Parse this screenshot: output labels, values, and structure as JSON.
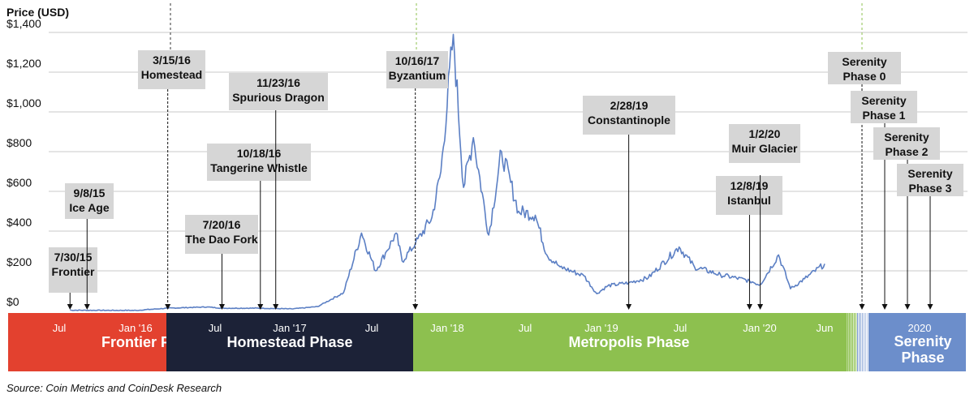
{
  "chart_data": {
    "type": "line",
    "ylabel": "Price (USD)",
    "ylim": [
      0,
      1400
    ],
    "yticks": [
      "$0",
      "$200",
      "$400",
      "$600",
      "$800",
      "$1,000",
      "$1,200",
      "$1,400"
    ],
    "grid": "horizontal",
    "x_tick_labels": [
      "Jul",
      "Jan '16",
      "Jul",
      "Jan '17",
      "Jul",
      "Jan '18",
      "Jul",
      "Jan '19",
      "Jul",
      "Jan '20",
      "Jun",
      "2020"
    ],
    "series": [
      {
        "values": [
          {
            "x": "2015-07-30",
            "y": 2
          },
          {
            "x": "2015-10-01",
            "y": 1
          },
          {
            "x": "2016-01-01",
            "y": 1
          },
          {
            "x": "2016-03-15",
            "y": 12
          },
          {
            "x": "2016-06-15",
            "y": 18
          },
          {
            "x": "2016-07-20",
            "y": 12
          },
          {
            "x": "2016-10-18",
            "y": 12
          },
          {
            "x": "2016-12-31",
            "y": 8
          },
          {
            "x": "2017-03-01",
            "y": 20
          },
          {
            "x": "2017-05-01",
            "y": 90
          },
          {
            "x": "2017-06-12",
            "y": 390
          },
          {
            "x": "2017-07-15",
            "y": 200
          },
          {
            "x": "2017-08-10",
            "y": 300
          },
          {
            "x": "2017-09-01",
            "y": 390
          },
          {
            "x": "2017-09-15",
            "y": 250
          },
          {
            "x": "2017-10-16",
            "y": 335
          },
          {
            "x": "2017-11-24",
            "y": 470
          },
          {
            "x": "2017-12-15",
            "y": 700
          },
          {
            "x": "2018-01-13",
            "y": 1390
          },
          {
            "x": "2018-02-06",
            "y": 620
          },
          {
            "x": "2018-03-01",
            "y": 870
          },
          {
            "x": "2018-04-06",
            "y": 380
          },
          {
            "x": "2018-05-06",
            "y": 800
          },
          {
            "x": "2018-06-15",
            "y": 500
          },
          {
            "x": "2018-07-24",
            "y": 480
          },
          {
            "x": "2018-08-20",
            "y": 280
          },
          {
            "x": "2018-09-20",
            "y": 220
          },
          {
            "x": "2018-11-15",
            "y": 175
          },
          {
            "x": "2018-12-15",
            "y": 85
          },
          {
            "x": "2019-01-10",
            "y": 125
          },
          {
            "x": "2019-02-28",
            "y": 140
          },
          {
            "x": "2019-04-15",
            "y": 165
          },
          {
            "x": "2019-06-26",
            "y": 320
          },
          {
            "x": "2019-08-01",
            "y": 220
          },
          {
            "x": "2019-10-01",
            "y": 180
          },
          {
            "x": "2019-12-08",
            "y": 150
          },
          {
            "x": "2020-01-02",
            "y": 130
          },
          {
            "x": "2020-02-14",
            "y": 280
          },
          {
            "x": "2020-03-13",
            "y": 110
          },
          {
            "x": "2020-04-15",
            "y": 160
          },
          {
            "x": "2020-06-01",
            "y": 235
          }
        ]
      }
    ],
    "phases": [
      {
        "name": "Frontier Phase",
        "color": "#e3412f"
      },
      {
        "name": "Homestead Phase",
        "color": "#1c2237"
      },
      {
        "name": "Metropolis Phase",
        "color": "#8dc04f"
      },
      {
        "name": "Serenity Phase",
        "color": "#6c8ecb"
      }
    ],
    "annotations": [
      {
        "date": "7/30/15",
        "name": "Frontier"
      },
      {
        "date": "9/8/15",
        "name": "Ice Age"
      },
      {
        "date": "3/15/16",
        "name": "Homestead"
      },
      {
        "date": "7/20/16",
        "name": "The Dao Fork"
      },
      {
        "date": "10/18/16",
        "name": "Tangerine Whistle"
      },
      {
        "date": "11/23/16",
        "name": "Spurious Dragon"
      },
      {
        "date": "10/16/17",
        "name": "Byzantium"
      },
      {
        "date": "2/28/19",
        "name": "Constantinople"
      },
      {
        "date": "12/8/19",
        "name": "Istanbul"
      },
      {
        "date": "1/2/20",
        "name": "Muir Glacier"
      },
      {
        "date": "",
        "name": "Serenity Phase 0"
      },
      {
        "date": "",
        "name": "Serenity Phase 1"
      },
      {
        "date": "",
        "name": "Serenity Phase 2"
      },
      {
        "date": "",
        "name": "Serenity Phase 3"
      }
    ]
  },
  "source": "Source: Coin Metrics and CoinDesk Research"
}
